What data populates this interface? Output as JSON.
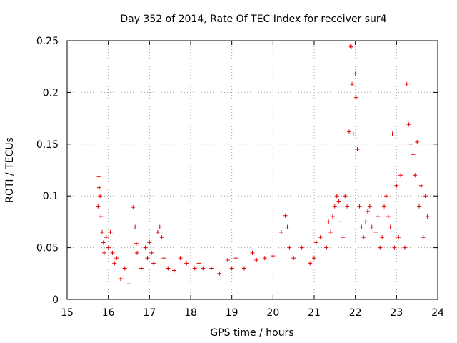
{
  "chart_data": {
    "type": "scatter",
    "title": "Day 352 of 2014, Rate Of TEC Index for receiver sur4",
    "xlabel": "GPS time / hours",
    "ylabel": "ROTI / TECUs",
    "xlim": [
      15,
      24
    ],
    "ylim": [
      0,
      0.25
    ],
    "xticks": [
      "15",
      "16",
      "17",
      "18",
      "19",
      "20",
      "21",
      "22",
      "23",
      "24"
    ],
    "yticks": [
      "0",
      "0.05",
      "0.1",
      "0.15",
      "0.2",
      "0.25"
    ],
    "grid": true,
    "marker": "+",
    "color": "#e00000",
    "series": [
      {
        "name": "sur4",
        "x": [
          15.75,
          15.77,
          15.78,
          15.8,
          15.82,
          15.85,
          15.88,
          15.9,
          15.95,
          16.0,
          16.05,
          16.1,
          16.15,
          16.2,
          16.3,
          16.4,
          16.5,
          16.6,
          16.65,
          16.68,
          16.7,
          16.8,
          16.9,
          16.95,
          17.0,
          17.05,
          17.1,
          17.2,
          17.25,
          17.3,
          17.35,
          17.45,
          17.6,
          17.75,
          17.9,
          18.1,
          18.2,
          18.3,
          18.5,
          18.7,
          18.9,
          19.0,
          19.1,
          19.3,
          19.5,
          19.6,
          19.8,
          20.0,
          20.2,
          20.3,
          20.35,
          20.4,
          20.5,
          20.7,
          20.9,
          21.0,
          21.05,
          21.15,
          21.3,
          21.35,
          21.4,
          21.45,
          21.5,
          21.55,
          21.6,
          21.65,
          21.7,
          21.75,
          21.8,
          21.85,
          21.88,
          21.9,
          21.92,
          21.95,
          22.0,
          22.02,
          22.05,
          22.1,
          22.15,
          22.2,
          22.25,
          22.3,
          22.35,
          22.4,
          22.5,
          22.55,
          22.6,
          22.65,
          22.7,
          22.75,
          22.8,
          22.85,
          22.9,
          22.95,
          23.0,
          23.05,
          23.1,
          23.2,
          23.25,
          23.3,
          23.35,
          23.4,
          23.45,
          23.5,
          23.55,
          23.6,
          23.65,
          23.7,
          23.75
        ],
        "y": [
          0.09,
          0.119,
          0.108,
          0.1,
          0.08,
          0.065,
          0.055,
          0.045,
          0.06,
          0.05,
          0.065,
          0.045,
          0.035,
          0.04,
          0.02,
          0.03,
          0.015,
          0.089,
          0.07,
          0.054,
          0.045,
          0.03,
          0.05,
          0.04,
          0.055,
          0.045,
          0.035,
          0.065,
          0.07,
          0.06,
          0.04,
          0.03,
          0.028,
          0.04,
          0.035,
          0.03,
          0.035,
          0.03,
          0.03,
          0.025,
          0.038,
          0.03,
          0.04,
          0.03,
          0.045,
          0.038,
          0.04,
          0.042,
          0.065,
          0.081,
          0.07,
          0.05,
          0.04,
          0.05,
          0.035,
          0.04,
          0.055,
          0.06,
          0.05,
          0.075,
          0.065,
          0.08,
          0.09,
          0.1,
          0.095,
          0.075,
          0.06,
          0.1,
          0.09,
          0.162,
          0.245,
          0.244,
          0.208,
          0.16,
          0.218,
          0.195,
          0.145,
          0.09,
          0.07,
          0.06,
          0.075,
          0.085,
          0.09,
          0.07,
          0.065,
          0.08,
          0.05,
          0.06,
          0.09,
          0.1,
          0.08,
          0.07,
          0.16,
          0.05,
          0.11,
          0.06,
          0.12,
          0.05,
          0.208,
          0.169,
          0.15,
          0.14,
          0.12,
          0.152,
          0.09,
          0.11,
          0.06,
          0.1,
          0.08
        ]
      }
    ]
  }
}
